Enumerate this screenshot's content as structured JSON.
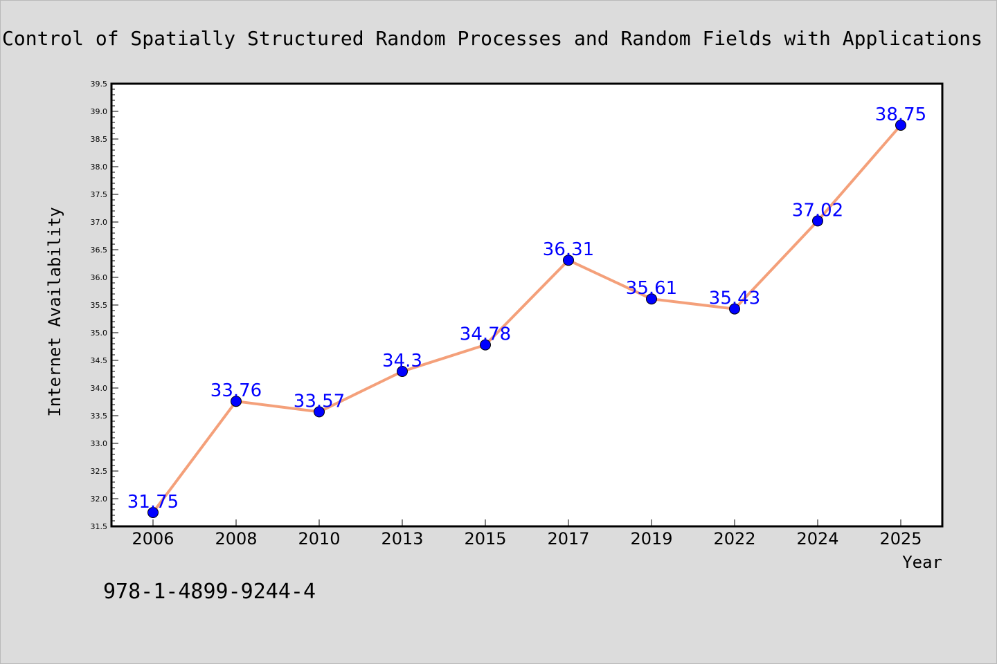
{
  "chart_data": {
    "type": "line",
    "title": "Control of Spatially Structured Random Processes and Random Fields with Applications",
    "xlabel": "Year",
    "ylabel": "Internet Availability",
    "categories": [
      "2006",
      "2008",
      "2010",
      "2013",
      "2015",
      "2017",
      "2019",
      "2022",
      "2024",
      "2025"
    ],
    "series": [
      {
        "values": [
          31.75,
          33.76,
          33.57,
          34.3,
          34.78,
          36.31,
          35.61,
          35.43,
          37.02,
          38.75
        ],
        "data_labels": [
          "31.75",
          "33.76",
          "33.57",
          "34.3",
          "34.78",
          "36.31",
          "35.61",
          "35.43",
          "37.02",
          "38.75"
        ]
      }
    ],
    "ylim": [
      31.5,
      39.5
    ],
    "yticks": [
      "31.5",
      "32.0",
      "32.5",
      "33.0",
      "33.5",
      "34.0",
      "34.5",
      "35.0",
      "35.5",
      "36.0",
      "36.5",
      "37.0",
      "37.5",
      "38.0",
      "38.5",
      "39.0",
      "39.5"
    ],
    "grid": false,
    "legend": "none",
    "colors": {
      "line": "#f4a07a",
      "marker": "#0000ff",
      "label": "#0000ff",
      "plot_bg": "#ffffff",
      "page_bg": "#dcdcdc"
    }
  },
  "footer_note": "978-1-4899-9244-4"
}
